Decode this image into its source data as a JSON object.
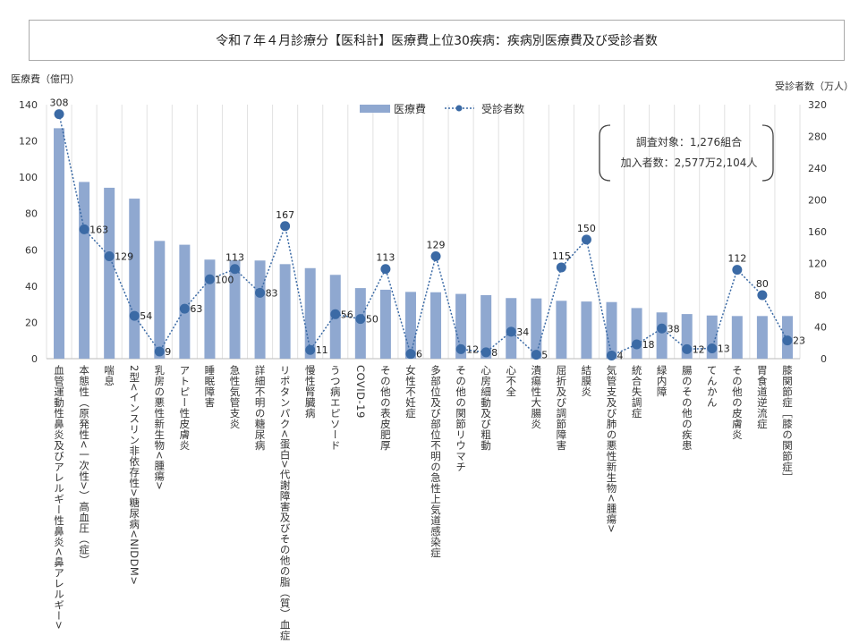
{
  "chart_data": {
    "type": "bar+line",
    "title": "令和７年４月診療分【医科計】医療費上位30疾病：疾病別医療費及び受診者数",
    "ylabel_left": "医療費（億円）",
    "ylabel_right": "受診者数（万人）",
    "ylim_left": [
      0,
      140
    ],
    "ylim_right": [
      0,
      320
    ],
    "yticks_left": [
      0,
      20,
      40,
      60,
      80,
      100,
      120,
      140
    ],
    "yticks_right": [
      0,
      40,
      80,
      120,
      160,
      200,
      240,
      280,
      320
    ],
    "grid": "vertical",
    "legend_placement": "top-center",
    "annotation": [
      "調査対象：1,276組合",
      "加入者数：2,577万2,104人"
    ],
    "categories": [
      "血管運動性鼻炎及びアレルギー性鼻炎<鼻アレルギー>",
      "本態性（原発性<一次性>）高血圧（症）",
      "喘息",
      "2型<インスリン非依存性>糖尿病<NIDDM>",
      "乳房の悪性新生物<腫瘍>",
      "アトピー性皮膚炎",
      "睡眠障害",
      "急性気管支炎",
      "詳細不明の糖尿病",
      "リポタンパク<蛋白>代謝障害及びその他の脂（質）血症",
      "慢性腎臓病",
      "うつ病エピソード",
      "COVID-19",
      "その他の表皮肥厚",
      "女性不妊症",
      "多部位及び部位不明の急性上気道感染症",
      "その他の関節リウマチ",
      "心房細動及び粗動",
      "心不全",
      "潰瘍性大腸炎",
      "屈折及び調節障害",
      "結膜炎",
      "気管支及び肺の悪性新生物<腫瘍>",
      "統合失調症",
      "緑内障",
      "腸のその他の疾患",
      "てんかん",
      "その他の皮膚炎",
      "胃食道逆流症",
      "膝関節症［膝の関節症］"
    ],
    "series": [
      {
        "name": "医療費",
        "type": "bar",
        "axis": "left",
        "color": "#8fa8d0",
        "values": [
          127,
          97.4,
          94.2,
          88.2,
          64.9,
          62.8,
          54.6,
          54.2,
          54.1,
          52.1,
          49.9,
          46.2,
          38.9,
          38.0,
          36.8,
          36.6,
          35.7,
          35.0,
          33.4,
          33.2,
          31.9,
          31.5,
          31.2,
          27.9,
          25.5,
          24.6,
          23.8,
          23.5,
          23.5,
          23.5
        ]
      },
      {
        "name": "受診者数",
        "type": "line",
        "axis": "right",
        "color": "#3b6aa5",
        "values": [
          308,
          163,
          129,
          54,
          9,
          63,
          100,
          113,
          83,
          167,
          11,
          56,
          50,
          113,
          6,
          129,
          12,
          8,
          34,
          5,
          115,
          150,
          4,
          18,
          38,
          12,
          13,
          112,
          80,
          23
        ]
      }
    ]
  }
}
